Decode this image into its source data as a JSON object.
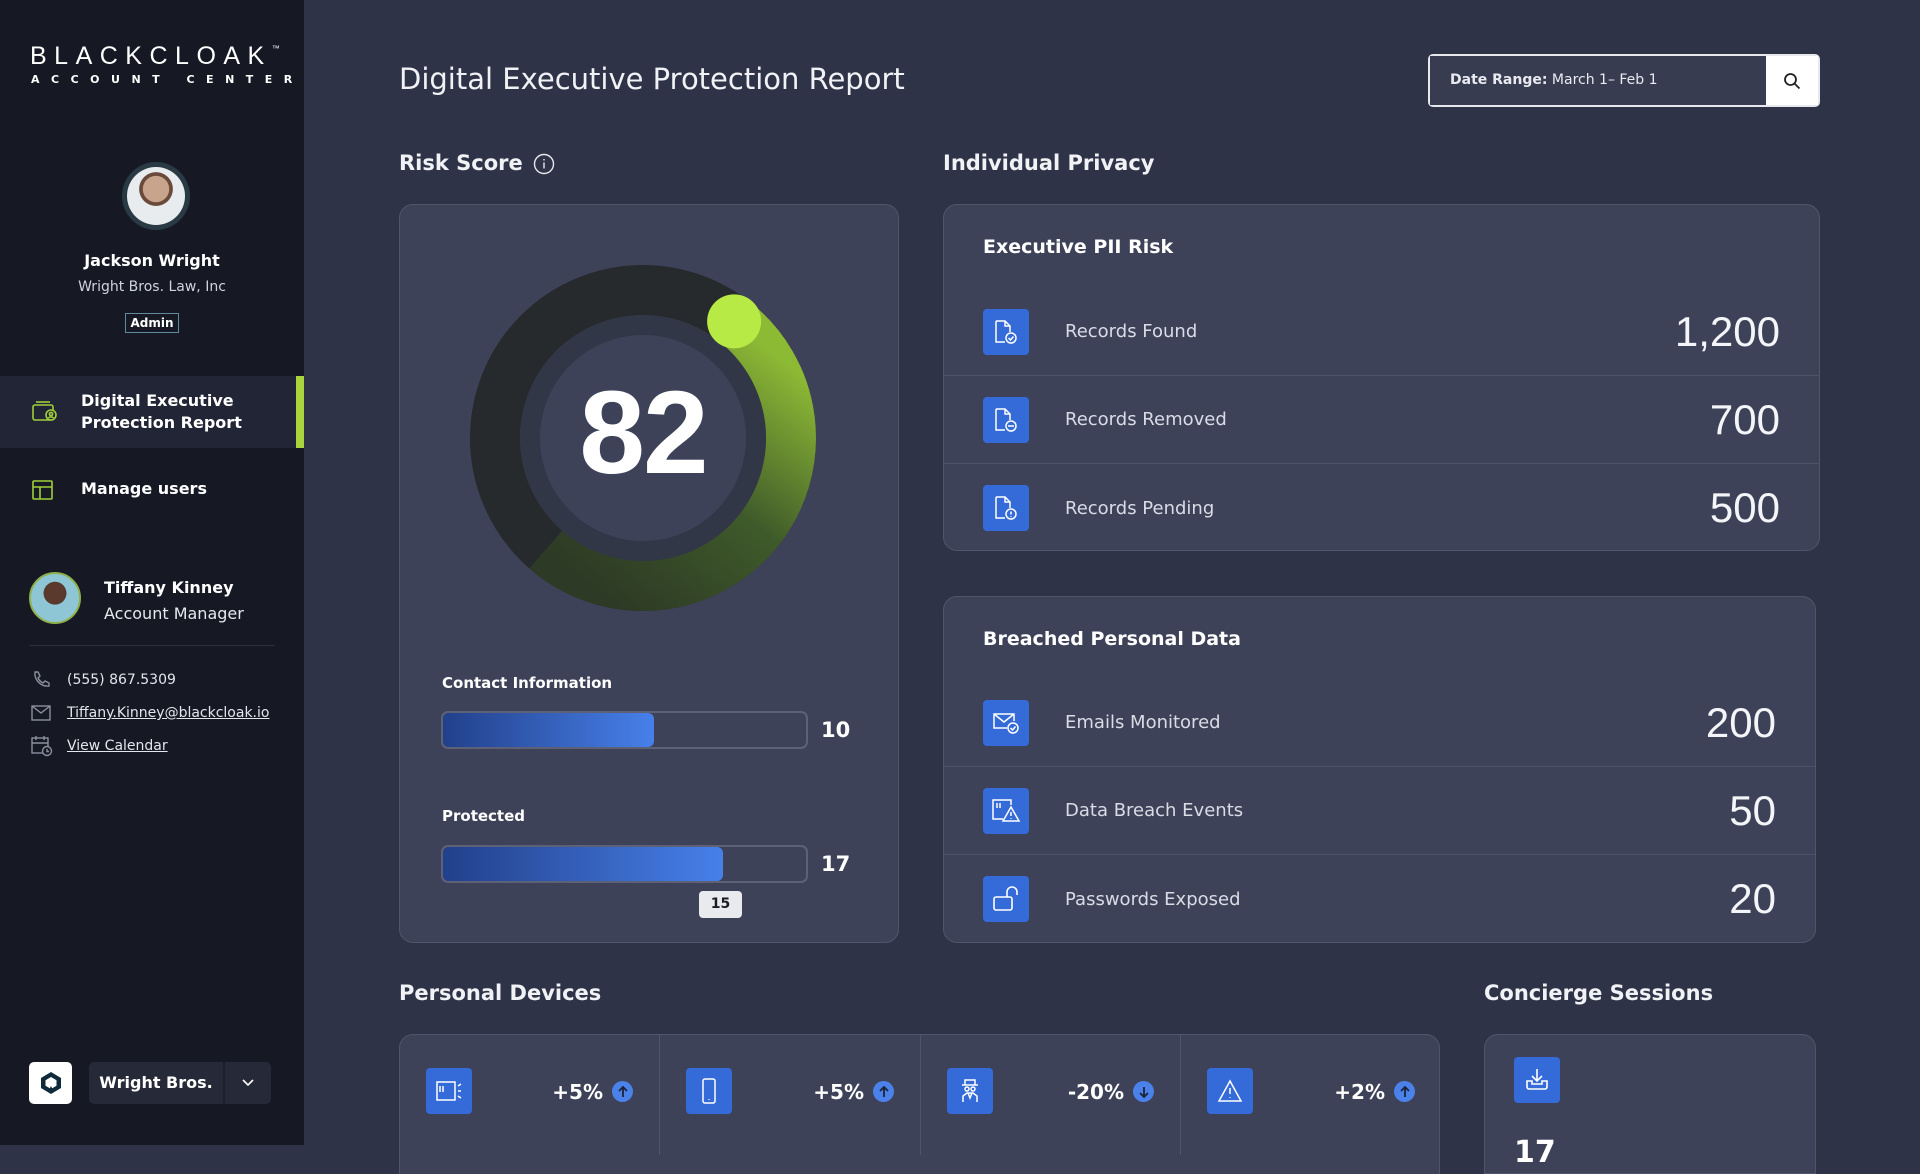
{
  "brand": {
    "name": "BLACKCLOAK",
    "tm": "™",
    "sub": "ACCOUNT CENTER"
  },
  "user": {
    "name": "Jackson Wright",
    "company": "Wright Bros. Law, Inc",
    "role": "Admin"
  },
  "nav": [
    {
      "label": "Digital Executive Protection Report",
      "icon": "wallet-user-icon",
      "active": true
    },
    {
      "label": "Manage users",
      "icon": "layout-icon",
      "active": false
    }
  ],
  "manager": {
    "name": "Tiffany Kinney",
    "title": "Account Manager",
    "phone": "(555) 867.5309",
    "email": "Tiffany.Kinney@blackcloak.io",
    "calendar": "View Calendar"
  },
  "org_switcher": {
    "label": "Wright Bros."
  },
  "header": {
    "title": "Digital Executive Protection Report",
    "date_label": "Date Range:",
    "date_value": "March 1– Feb 1"
  },
  "risk": {
    "heading": "Risk Score",
    "score": "82",
    "score_value": 82,
    "accent": "#b8ea45",
    "bars": [
      {
        "label": "Contact Information",
        "value": "10",
        "fill_percent": 58
      },
      {
        "label": "Protected",
        "value": "17",
        "fill_percent": 77,
        "marker": "15"
      }
    ]
  },
  "privacy": {
    "heading": "Individual Privacy",
    "pii": {
      "title": "Executive PII Risk",
      "rows": [
        {
          "label": "Records Found",
          "value": "1,200",
          "icon": "file-check-icon"
        },
        {
          "label": "Records Removed",
          "value": "700",
          "icon": "file-minus-icon"
        },
        {
          "label": "Records Pending",
          "value": "500",
          "icon": "file-alert-icon"
        }
      ]
    },
    "breach": {
      "title": "Breached Personal Data",
      "rows": [
        {
          "label": "Emails Monitored",
          "value": "200",
          "icon": "mail-check-icon"
        },
        {
          "label": "Data Breach Events",
          "value": "50",
          "icon": "breach-warning-icon"
        },
        {
          "label": "Passwords Exposed",
          "value": "20",
          "icon": "unlock-icon"
        }
      ]
    }
  },
  "devices": {
    "heading": "Personal Devices",
    "items": [
      {
        "icon": "computer-icon",
        "change": "+5%",
        "dir": "up"
      },
      {
        "icon": "phone-icon",
        "change": "+5%",
        "dir": "up"
      },
      {
        "icon": "spy-icon",
        "change": "-20%",
        "dir": "down"
      },
      {
        "icon": "warning-icon",
        "change": "+2%",
        "dir": "up"
      }
    ]
  },
  "concierge": {
    "heading": "Concierge Sessions",
    "icon": "inbox-download-icon",
    "value": "17"
  }
}
